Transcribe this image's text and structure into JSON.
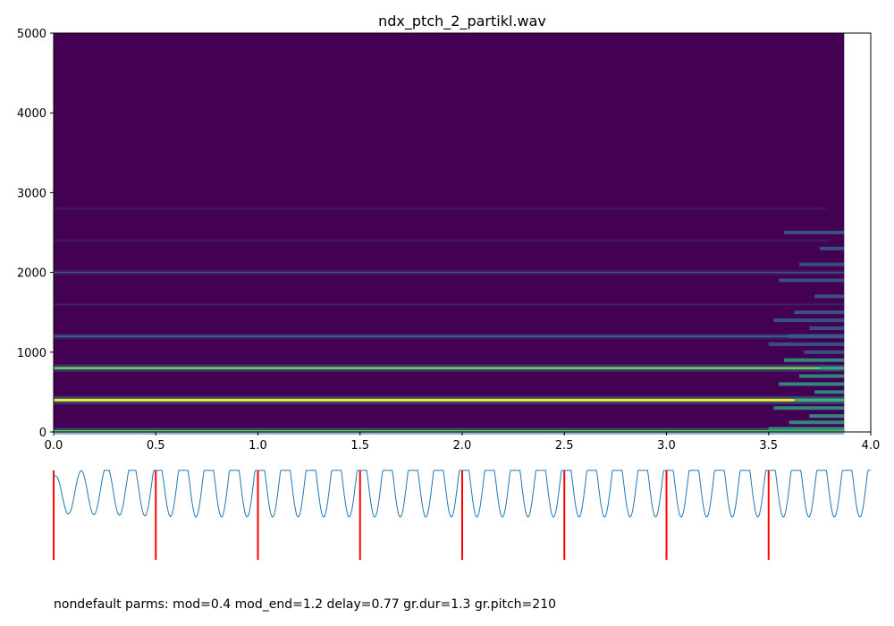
{
  "chart_data": [
    {
      "type": "heatmap",
      "title": "ndx_ptch_2_partikl.wav",
      "xlabel": "",
      "ylabel": "",
      "xlim": [
        0,
        4.0
      ],
      "ylim": [
        0,
        5000
      ],
      "x_ticks": [
        0.0,
        0.5,
        1.0,
        1.5,
        2.0,
        2.5,
        3.0,
        3.5,
        4.0
      ],
      "x_tick_labels": [
        "0.0",
        "0.5",
        "1.0",
        "1.5",
        "2.0",
        "2.5",
        "3.0",
        "3.5",
        "4.0"
      ],
      "y_ticks": [
        0,
        1000,
        2000,
        3000,
        4000,
        5000
      ],
      "y_tick_labels": [
        "0",
        "1000",
        "2000",
        "3000",
        "4000",
        "5000"
      ],
      "signal_end": 3.87,
      "colormap": "viridis",
      "background_color": "#440154",
      "partials": [
        {
          "freq": 10,
          "end": 3.87,
          "level": 0.75
        },
        {
          "freq": 400,
          "end": 3.87,
          "level": 1.0
        },
        {
          "freq": 800,
          "end": 3.87,
          "level": 0.8
        },
        {
          "freq": 1200,
          "end": 3.87,
          "level": 0.4
        },
        {
          "freq": 1600,
          "end": 3.87,
          "level": 0.12
        },
        {
          "freq": 2000,
          "end": 3.87,
          "level": 0.3
        },
        {
          "freq": 2400,
          "end": 3.8,
          "level": 0.1
        },
        {
          "freq": 2800,
          "end": 3.78,
          "level": 0.1
        }
      ],
      "tail_start": 3.5,
      "tail_freqs": [
        40,
        120,
        200,
        300,
        400,
        500,
        600,
        700,
        800,
        900,
        1000,
        1100,
        1200,
        1300,
        1400,
        1500,
        1700,
        1900,
        2100,
        2300,
        2500
      ]
    },
    {
      "type": "line",
      "title": "",
      "xlim": [
        0,
        4.0
      ],
      "series": [
        {
          "values_note": "",
          "color": "#1f77b4"
        }
      ],
      "cycles": 32,
      "markers": [
        0.0,
        0.5,
        1.0,
        1.5,
        2.0,
        2.5,
        3.0,
        3.5
      ],
      "marker_color": "#ff0000"
    }
  ],
  "caption": "nondefault parms: mod=0.4 mod_end=1.2 delay=0.77 gr.dur=1.3 gr.pitch=210"
}
